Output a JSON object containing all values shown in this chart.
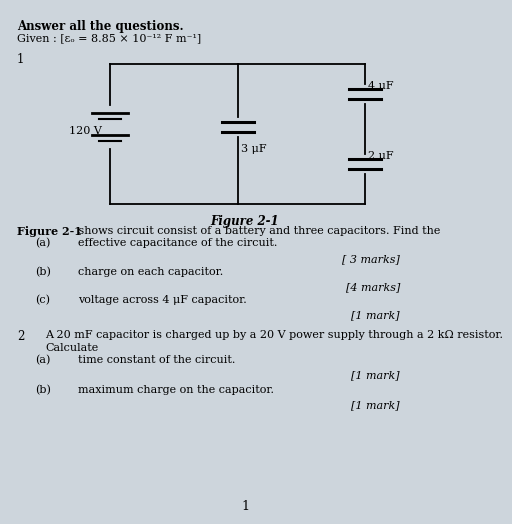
{
  "background_color": "#cdd5dc",
  "title_bold": "Answer all the questions.",
  "given": "Given : [εₒ = 8.85 × 10⁻¹² F m⁻¹]",
  "q1_label": "1",
  "figure_label": "Figure 2-1",
  "q1a_label": "(a)",
  "q1a_text": "effective capacitance of the circuit.",
  "q1a_marks": "[ 3 marks]",
  "q1b_label": "(b)",
  "q1b_text": "charge on each capacitor.",
  "q1b_marks": "[4 marks]",
  "q1c_label": "(c)",
  "q1c_text": "voltage across 4 μF capacitor.",
  "q1c_marks": "[1 mark]",
  "q2_label": "2",
  "q2_text": "A 20 mF capacitor is charged up by a 20 V power supply through a 2 kΩ resistor.",
  "q2_calc": "Calculate",
  "q2a_label": "(a)",
  "q2a_text": "time constant of the circuit.",
  "q2a_marks": "[1 mark]",
  "q2b_label": "(b)",
  "q2b_text": "maximum charge on the capacitor.",
  "q2b_marks": "[1 mark]",
  "page_num": "1",
  "battery_label": "120 V",
  "cap1_label": "3 μF",
  "cap2_label": "4 μF",
  "cap3_label": "2 μF",
  "fig_desc_bold": "Figure 2-1",
  "fig_desc_normal": " shows circuit consist of a battery and three capacitors. Find the"
}
